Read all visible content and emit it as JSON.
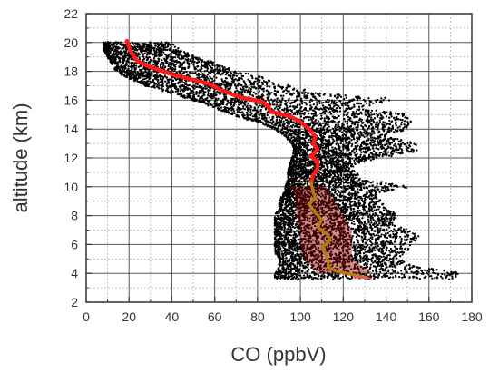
{
  "chart_data": {
    "type": "scatter",
    "title": "",
    "xlabel": "CO (ppbV)",
    "ylabel": "altitude (km)",
    "xlim": [
      0,
      180
    ],
    "ylim": [
      2,
      22
    ],
    "x_ticks": [
      "0",
      "20",
      "40",
      "60",
      "80",
      "100",
      "120",
      "140",
      "160",
      "180"
    ],
    "y_ticks": [
      "2",
      "4",
      "6",
      "8",
      "10",
      "12",
      "14",
      "16",
      "18",
      "20",
      "22"
    ],
    "grid": true,
    "series": [
      {
        "type": "scatter-cloud",
        "color": "#000000",
        "bands": [
          {
            "alt": 20.0,
            "co_min": 8,
            "co_max": 40
          },
          {
            "alt": 19.5,
            "co_min": 8,
            "co_max": 44
          },
          {
            "alt": 19.0,
            "co_min": 10,
            "co_max": 52
          },
          {
            "alt": 18.5,
            "co_min": 12,
            "co_max": 62
          },
          {
            "alt": 18.0,
            "co_min": 14,
            "co_max": 70
          },
          {
            "alt": 17.5,
            "co_min": 20,
            "co_max": 84
          },
          {
            "alt": 17.0,
            "co_min": 28,
            "co_max": 96
          },
          {
            "alt": 16.5,
            "co_min": 40,
            "co_max": 106
          },
          {
            "alt": 16.0,
            "co_min": 50,
            "co_max": 150
          },
          {
            "alt": 15.5,
            "co_min": 60,
            "co_max": 126
          },
          {
            "alt": 15.0,
            "co_min": 68,
            "co_max": 150
          },
          {
            "alt": 14.5,
            "co_min": 80,
            "co_max": 152
          },
          {
            "alt": 14.0,
            "co_min": 88,
            "co_max": 150
          },
          {
            "alt": 13.5,
            "co_min": 93,
            "co_max": 140
          },
          {
            "alt": 13.0,
            "co_min": 96,
            "co_max": 154
          },
          {
            "alt": 12.5,
            "co_min": 97,
            "co_max": 155
          },
          {
            "alt": 12.0,
            "co_min": 96,
            "co_max": 136
          },
          {
            "alt": 11.5,
            "co_min": 95,
            "co_max": 124
          },
          {
            "alt": 11.0,
            "co_min": 94,
            "co_max": 126
          },
          {
            "alt": 10.5,
            "co_min": 94,
            "co_max": 130
          },
          {
            "alt": 10.0,
            "co_min": 93,
            "co_max": 150
          },
          {
            "alt": 9.5,
            "co_min": 92,
            "co_max": 135
          },
          {
            "alt": 9.0,
            "co_min": 90,
            "co_max": 138
          },
          {
            "alt": 8.5,
            "co_min": 90,
            "co_max": 140
          },
          {
            "alt": 8.0,
            "co_min": 88,
            "co_max": 146
          },
          {
            "alt": 7.5,
            "co_min": 88,
            "co_max": 142
          },
          {
            "alt": 7.0,
            "co_min": 88,
            "co_max": 150
          },
          {
            "alt": 6.5,
            "co_min": 88,
            "co_max": 157
          },
          {
            "alt": 6.0,
            "co_min": 88,
            "co_max": 152
          },
          {
            "alt": 5.5,
            "co_min": 88,
            "co_max": 150
          },
          {
            "alt": 5.0,
            "co_min": 90,
            "co_max": 145
          },
          {
            "alt": 4.5,
            "co_min": 90,
            "co_max": 155
          },
          {
            "alt": 4.0,
            "co_min": 88,
            "co_max": 175
          },
          {
            "alt": 3.6,
            "co_min": 88,
            "co_max": 170
          }
        ]
      },
      {
        "type": "shaded-band",
        "color": "#8b0000",
        "opacity": 0.45,
        "points": [
          {
            "alt": 10.0,
            "x_lo": 96,
            "x_hi": 112
          },
          {
            "alt": 9.0,
            "x_lo": 98,
            "x_hi": 116
          },
          {
            "alt": 8.0,
            "x_lo": 98,
            "x_hi": 120
          },
          {
            "alt": 7.0,
            "x_lo": 100,
            "x_hi": 124
          },
          {
            "alt": 6.0,
            "x_lo": 100,
            "x_hi": 124
          },
          {
            "alt": 5.0,
            "x_lo": 102,
            "x_hi": 124
          },
          {
            "alt": 4.0,
            "x_lo": 108,
            "x_hi": 134
          }
        ]
      },
      {
        "type": "line",
        "color": "#ff1a1a",
        "width": 4.5,
        "points": [
          [
            19,
            20.1
          ],
          [
            21,
            19.3
          ],
          [
            24,
            18.7
          ],
          [
            30,
            18.3
          ],
          [
            40,
            17.8
          ],
          [
            50,
            17.4
          ],
          [
            58,
            17.1
          ],
          [
            63,
            16.7
          ],
          [
            72,
            16.2
          ],
          [
            82,
            15.9
          ],
          [
            85,
            15.6
          ],
          [
            86,
            15.2
          ],
          [
            95,
            14.9
          ],
          [
            100,
            14.5
          ],
          [
            104,
            14.0
          ],
          [
            107,
            13.5
          ],
          [
            106,
            13.0
          ],
          [
            108,
            12.6
          ],
          [
            105,
            12.1
          ],
          [
            108,
            11.8
          ],
          [
            108,
            11.3
          ],
          [
            106,
            10.8
          ],
          [
            105,
            10.3
          ]
        ]
      },
      {
        "type": "line",
        "color": "#b57a10",
        "width": 3.5,
        "points": [
          [
            105,
            10.3
          ],
          [
            106,
            9.6
          ],
          [
            107,
            9.2
          ],
          [
            104,
            8.8
          ],
          [
            107,
            8.2
          ],
          [
            110,
            7.7
          ],
          [
            108,
            7.2
          ],
          [
            112,
            6.8
          ],
          [
            114,
            6.3
          ],
          [
            110,
            5.8
          ],
          [
            112,
            5.3
          ],
          [
            113,
            4.8
          ],
          [
            113,
            4.4
          ],
          [
            118,
            4.1
          ],
          [
            125,
            3.9
          ],
          [
            131,
            3.7
          ]
        ]
      },
      {
        "type": "line",
        "color": "#ff4d6d",
        "width": 2,
        "points": [
          [
            125,
            3.75
          ],
          [
            133,
            3.65
          ]
        ]
      }
    ]
  }
}
